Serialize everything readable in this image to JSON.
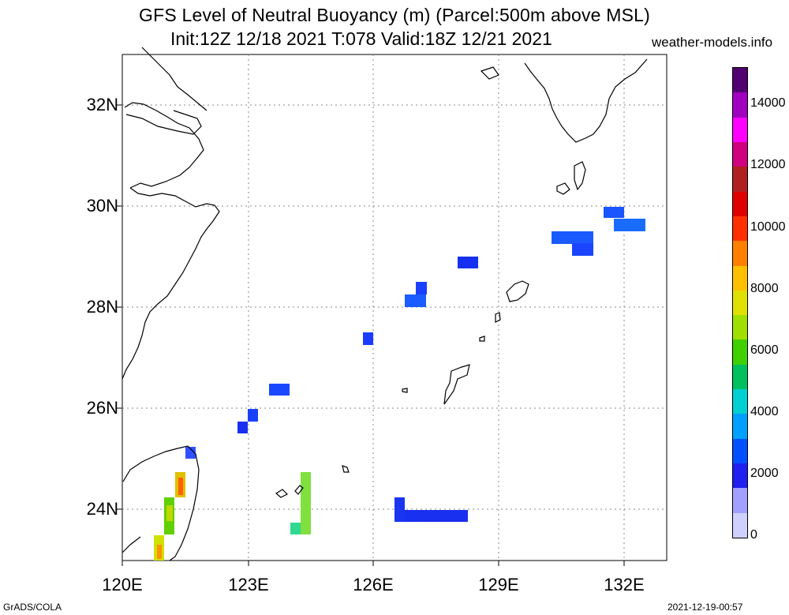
{
  "title": {
    "line1": "GFS Level of Neutral Buoyancy (m) (Parcel:500m above MSL)",
    "line2": "Init:12Z 12/18 2021 T:078 Valid:18Z 12/21 2021",
    "site": "weather-models.info"
  },
  "axes": {
    "lat_labels": [
      "32N",
      "30N",
      "28N",
      "26N",
      "24N"
    ],
    "lon_labels": [
      "120E",
      "123E",
      "126E",
      "129E",
      "132E"
    ]
  },
  "colorbar": {
    "labels": [
      "14000",
      "12000",
      "10000",
      "8000",
      "6000",
      "4000",
      "2000",
      "0"
    ],
    "colors": [
      "#d0d0ff",
      "#a0a0ff",
      "#2020f0",
      "#0050ff",
      "#00a0ff",
      "#00d0d0",
      "#00c060",
      "#40d000",
      "#a0e000",
      "#e0e000",
      "#ffc000",
      "#ff8000",
      "#ff3000",
      "#e00000",
      "#b02020",
      "#d00080",
      "#ff00ff",
      "#a000c0",
      "#500070"
    ]
  },
  "footer": {
    "left": "GrADS/COLA",
    "right": "2021-12-19-00:57"
  },
  "map": {
    "region": "East China Sea",
    "lat_range": [
      23,
      33
    ],
    "lon_range": [
      120,
      133
    ]
  }
}
